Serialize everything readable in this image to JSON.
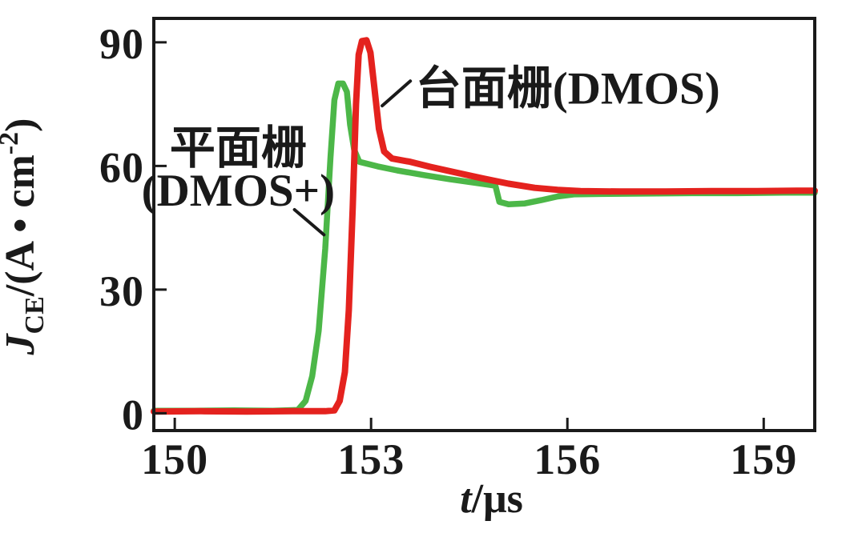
{
  "figure": {
    "background": "#ffffff",
    "axis_color": "#1a1a1a",
    "leader_color": "#1a1a1a"
  },
  "chart_data": {
    "type": "line",
    "title": "",
    "xlabel": "t/μs",
    "ylabel": "J_CE/(A • cm^-2)",
    "xlabel_parts": {
      "var": "t",
      "rest": "/μs"
    },
    "ylabel_parts": {
      "var": "J",
      "sub": "CE",
      "mid": "/(A • cm",
      "sup": "-2",
      "close": ")"
    },
    "xlim": [
      149.68,
      159.78
    ],
    "ylim": [
      -4.2,
      95.8
    ],
    "x_ticks": [
      150,
      153,
      156,
      159
    ],
    "y_ticks": [
      0,
      30,
      60,
      90
    ],
    "grid": false,
    "legend_position": "none (inline annotations)",
    "series": [
      {
        "name": "平面栅(DMOS+)",
        "color": "#4cb748",
        "stroke_width": 7.5,
        "points": [
          [
            149.68,
            0.6
          ],
          [
            150.3,
            0.6
          ],
          [
            150.9,
            0.7
          ],
          [
            151.5,
            0.6
          ],
          [
            151.88,
            0.8
          ],
          [
            152.0,
            3
          ],
          [
            152.1,
            9
          ],
          [
            152.2,
            20
          ],
          [
            152.3,
            40
          ],
          [
            152.38,
            62
          ],
          [
            152.44,
            76
          ],
          [
            152.5,
            80
          ],
          [
            152.57,
            80
          ],
          [
            152.63,
            78
          ],
          [
            152.68,
            70
          ],
          [
            152.74,
            64
          ],
          [
            152.82,
            61
          ],
          [
            153.1,
            59.9
          ],
          [
            153.4,
            58.9
          ],
          [
            153.8,
            57.8
          ],
          [
            154.2,
            56.8
          ],
          [
            154.6,
            55.9
          ],
          [
            154.9,
            55.2
          ],
          [
            154.96,
            51.3
          ],
          [
            155.1,
            50.7
          ],
          [
            155.35,
            50.9
          ],
          [
            155.6,
            51.7
          ],
          [
            155.85,
            52.6
          ],
          [
            156.1,
            53.1
          ],
          [
            156.5,
            53.2
          ],
          [
            157.2,
            53.3
          ],
          [
            157.9,
            53.4
          ],
          [
            158.6,
            53.4
          ],
          [
            159.3,
            53.5
          ],
          [
            159.78,
            53.5
          ]
        ]
      },
      {
        "name": "台面栅(DMOS)",
        "color": "#e4221e",
        "stroke_width": 8,
        "points": [
          [
            149.68,
            0.4
          ],
          [
            150.4,
            0.5
          ],
          [
            151.1,
            0.4
          ],
          [
            151.8,
            0.5
          ],
          [
            152.3,
            0.5
          ],
          [
            152.44,
            0.7
          ],
          [
            152.52,
            3
          ],
          [
            152.6,
            10
          ],
          [
            152.66,
            25
          ],
          [
            152.72,
            50
          ],
          [
            152.77,
            75
          ],
          [
            152.81,
            87
          ],
          [
            152.86,
            90.3
          ],
          [
            152.93,
            90.5
          ],
          [
            152.99,
            87.5
          ],
          [
            153.05,
            79
          ],
          [
            153.12,
            69
          ],
          [
            153.2,
            63.5
          ],
          [
            153.32,
            61.8
          ],
          [
            153.6,
            61
          ],
          [
            153.9,
            59.8
          ],
          [
            154.3,
            58.4
          ],
          [
            154.7,
            57
          ],
          [
            155.1,
            55.7
          ],
          [
            155.5,
            54.7
          ],
          [
            155.85,
            54.2
          ],
          [
            156.2,
            53.9
          ],
          [
            156.8,
            53.8
          ],
          [
            157.5,
            53.8
          ],
          [
            158.2,
            53.9
          ],
          [
            158.9,
            53.9
          ],
          [
            159.5,
            54
          ],
          [
            159.78,
            54
          ]
        ]
      }
    ],
    "annotations": [
      {
        "id": "mesa-gate-dmos",
        "text": "台面栅(DMOS)",
        "align": "start",
        "anchor": {
          "t": 153.68,
          "v": 75.1
        },
        "leader": {
          "t1": 153.6,
          "v1": 80.6,
          "t2": 153.17,
          "v2": 74.6
        }
      },
      {
        "id": "planar-gate-dmos-plus",
        "lines": [
          "平面栅",
          "(DMOS+)"
        ],
        "align": "middle",
        "anchor": {
          "t": 150.97,
          "v": 60.7
        },
        "line2_v": 50.4,
        "leader": {
          "t1": 151.83,
          "v1": 49.4,
          "t2": 152.28,
          "v2": 43.3
        }
      }
    ]
  }
}
